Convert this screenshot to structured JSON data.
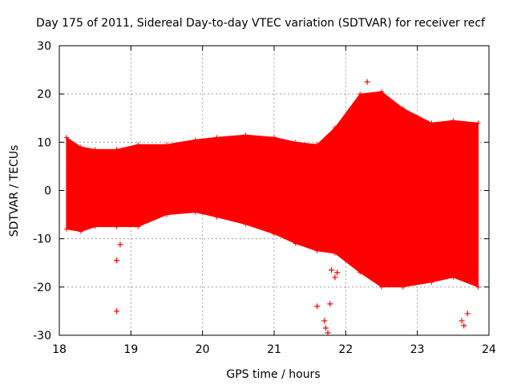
{
  "chart_data": {
    "type": "scatter",
    "title": "Day 175 of 2011, Sidereal Day-to-day VTEC variation (SDTVAR) for receiver recf",
    "xlabel": "GPS time / hours",
    "ylabel": "SDTVAR / TECUs",
    "xlim": [
      18,
      24
    ],
    "ylim": [
      -30,
      30
    ],
    "x_ticks": [
      "18",
      "19",
      "20",
      "21",
      "22",
      "23",
      "24"
    ],
    "y_ticks": [
      "30",
      "20",
      "10",
      "0",
      "-10",
      "-20",
      "-30"
    ],
    "grid": true,
    "marker": "+",
    "series_color": "#ff0000",
    "series": [
      {
        "band_envelope": [
          {
            "x": 18.1,
            "upper": 11,
            "lower": -8
          },
          {
            "x": 18.3,
            "upper": 9,
            "lower": -8.5
          },
          {
            "x": 18.5,
            "upper": 8.5,
            "lower": -7.5
          },
          {
            "x": 18.8,
            "upper": 8.5,
            "lower": -7.5
          },
          {
            "x": 19.1,
            "upper": 9.5,
            "lower": -7.5
          },
          {
            "x": 19.5,
            "upper": 9.5,
            "lower": -5
          },
          {
            "x": 19.9,
            "upper": 10.5,
            "lower": -4.5
          },
          {
            "x": 20.2,
            "upper": 11,
            "lower": -5.5
          },
          {
            "x": 20.6,
            "upper": 11.5,
            "lower": -7
          },
          {
            "x": 21.0,
            "upper": 11,
            "lower": -9
          },
          {
            "x": 21.3,
            "upper": 10,
            "lower": -11
          },
          {
            "x": 21.6,
            "upper": 9.5,
            "lower": -12.5
          },
          {
            "x": 21.85,
            "upper": 13,
            "lower": -13
          },
          {
            "x": 22.2,
            "upper": 20,
            "lower": -17
          },
          {
            "x": 22.5,
            "upper": 20.5,
            "lower": -20
          },
          {
            "x": 22.8,
            "upper": 17,
            "lower": -20
          },
          {
            "x": 23.2,
            "upper": 14,
            "lower": -19
          },
          {
            "x": 23.5,
            "upper": 14.5,
            "lower": -18
          },
          {
            "x": 23.85,
            "upper": 14,
            "lower": -20
          }
        ],
        "points": [
          [
            18.8,
            -25
          ],
          [
            18.8,
            -14.5
          ],
          [
            18.85,
            -11.2
          ],
          [
            18.95,
            8.5
          ],
          [
            21.6,
            -24
          ],
          [
            21.7,
            -27
          ],
          [
            21.72,
            -28.5
          ],
          [
            21.75,
            -29.5
          ],
          [
            21.78,
            -23.5
          ],
          [
            21.8,
            -16.5
          ],
          [
            21.85,
            -18
          ],
          [
            21.88,
            -17
          ],
          [
            21.9,
            -7.5
          ],
          [
            22.2,
            3.5
          ],
          [
            22.3,
            22.5
          ],
          [
            22.8,
            2.5
          ],
          [
            23.62,
            -27
          ],
          [
            23.65,
            -28
          ],
          [
            23.7,
            -25.5
          ]
        ]
      }
    ]
  }
}
